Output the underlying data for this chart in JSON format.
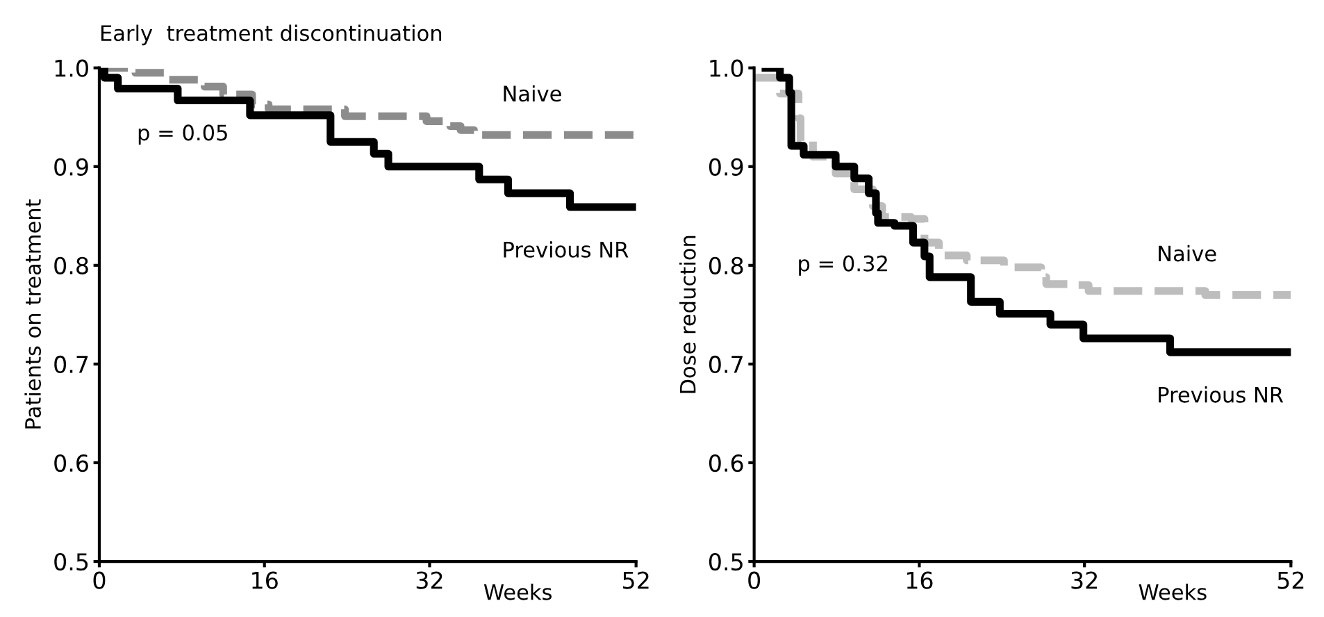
{
  "chart_data": [
    {
      "type": "step",
      "title": "Early  treatment discontinuation",
      "xlabel": "Weeks",
      "ylabel": "Patients on treatment",
      "xlim": [
        0,
        52
      ],
      "xticks": [
        0,
        16,
        32,
        52
      ],
      "ylim": [
        0.5,
        1.0
      ],
      "yticks": [
        0.5,
        0.6,
        0.7,
        0.8,
        0.9,
        {
          "value": 1.0,
          "label": "1.0"
        }
      ],
      "grid": false,
      "legend": false,
      "annotations": [
        "p = 0.05"
      ],
      "series": [
        {
          "name": "Naive",
          "color": "#8c8c8c",
          "line_style": "dashed",
          "x": [
            0,
            3.5,
            6.5,
            10.2,
            12,
            14.8,
            16.4,
            23.8,
            31.7,
            34,
            35,
            36.3,
            52
          ],
          "values": [
            1.0,
            0.995,
            0.988,
            0.981,
            0.973,
            0.963,
            0.958,
            0.951,
            0.946,
            0.941,
            0.937,
            0.932,
            0.932
          ]
        },
        {
          "name": "Previous NR",
          "color": "#000000",
          "line_style": "solid",
          "x": [
            0,
            0.5,
            1.8,
            7.6,
            14.6,
            22.4,
            26.6,
            28,
            36.8,
            39.6,
            45.6,
            52
          ],
          "values": [
            1.0,
            0.99,
            0.979,
            0.967,
            0.952,
            0.925,
            0.913,
            0.9,
            0.887,
            0.873,
            0.859,
            0.859
          ]
        }
      ]
    },
    {
      "type": "step",
      "xlabel": "Weeks",
      "ylabel": "Dose reduction",
      "xlim": [
        0,
        52
      ],
      "xticks": [
        0,
        16,
        32,
        52
      ],
      "ylim": [
        0.5,
        1.0
      ],
      "yticks": [
        0.5,
        0.6,
        0.7,
        0.8,
        0.9,
        {
          "value": 1.0,
          "label": "1.0"
        }
      ],
      "grid": false,
      "legend": false,
      "annotations": [
        "p = 0.32"
      ],
      "series": [
        {
          "name": "Naive",
          "color": "#bdbdbd",
          "line_style": "dashed",
          "x": [
            0,
            2.5,
            4.3,
            4.5,
            5.7,
            7.9,
            9.7,
            11.5,
            12.4,
            15.2,
            16.5,
            17.9,
            20.6,
            24.2,
            27.8,
            28.3,
            31,
            32.4,
            43.7,
            52
          ],
          "values": [
            0.99,
            0.974,
            0.949,
            0.926,
            0.91,
            0.893,
            0.877,
            0.86,
            0.849,
            0.847,
            0.823,
            0.81,
            0.805,
            0.798,
            0.788,
            0.781,
            0.78,
            0.774,
            0.77,
            0.77
          ]
        },
        {
          "name": "Previous NR",
          "color": "#000000",
          "line_style": "solid",
          "x": [
            1.1,
            2.5,
            3.4,
            3.6,
            4.8,
            7.9,
            9.7,
            11.1,
            11.8,
            12,
            13.6,
            15.4,
            16.5,
            17,
            21,
            23.8,
            28.7,
            31.9,
            40.3,
            52
          ],
          "values": [
            1.0,
            0.99,
            0.975,
            0.921,
            0.912,
            0.9,
            0.888,
            0.873,
            0.853,
            0.843,
            0.84,
            0.823,
            0.809,
            0.788,
            0.763,
            0.751,
            0.74,
            0.726,
            0.712,
            0.712
          ]
        }
      ]
    }
  ]
}
